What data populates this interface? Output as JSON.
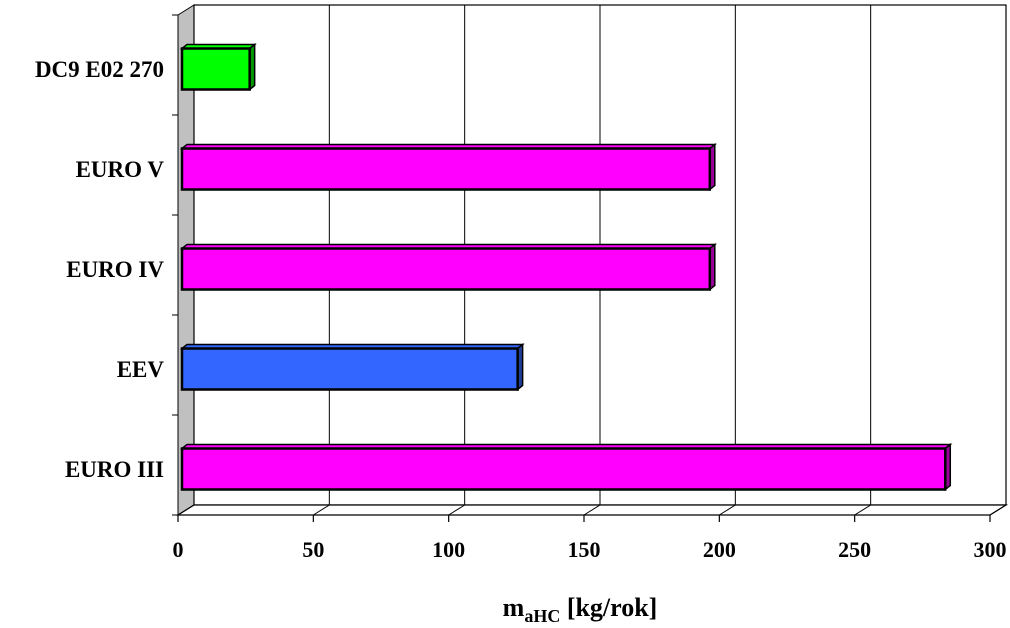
{
  "chart_data": {
    "type": "bar",
    "orientation": "horizontal",
    "style": "3d",
    "categories": [
      "EURO III",
      "EEV",
      "EURO IV",
      "EURO V",
      "DC9 E02 270"
    ],
    "values": [
      282,
      124,
      195,
      195,
      25
    ],
    "colors": [
      "#ff00ff",
      "#3366ff",
      "#ff00ff",
      "#ff00ff",
      "#00ff00"
    ],
    "side_colors": [
      "#990099",
      "#1f3d99",
      "#990099",
      "#990099",
      "#009900"
    ],
    "xlim": [
      0,
      300
    ],
    "xticks": [
      0,
      50,
      100,
      150,
      200,
      250,
      300
    ],
    "xlabel_main": "m",
    "xlabel_sub": "aHC",
    "xlabel_unit": " [kg/rok]",
    "ylabel": "",
    "title": "",
    "grid": true,
    "legend": "none",
    "wall_color": "#c0c0c0"
  }
}
